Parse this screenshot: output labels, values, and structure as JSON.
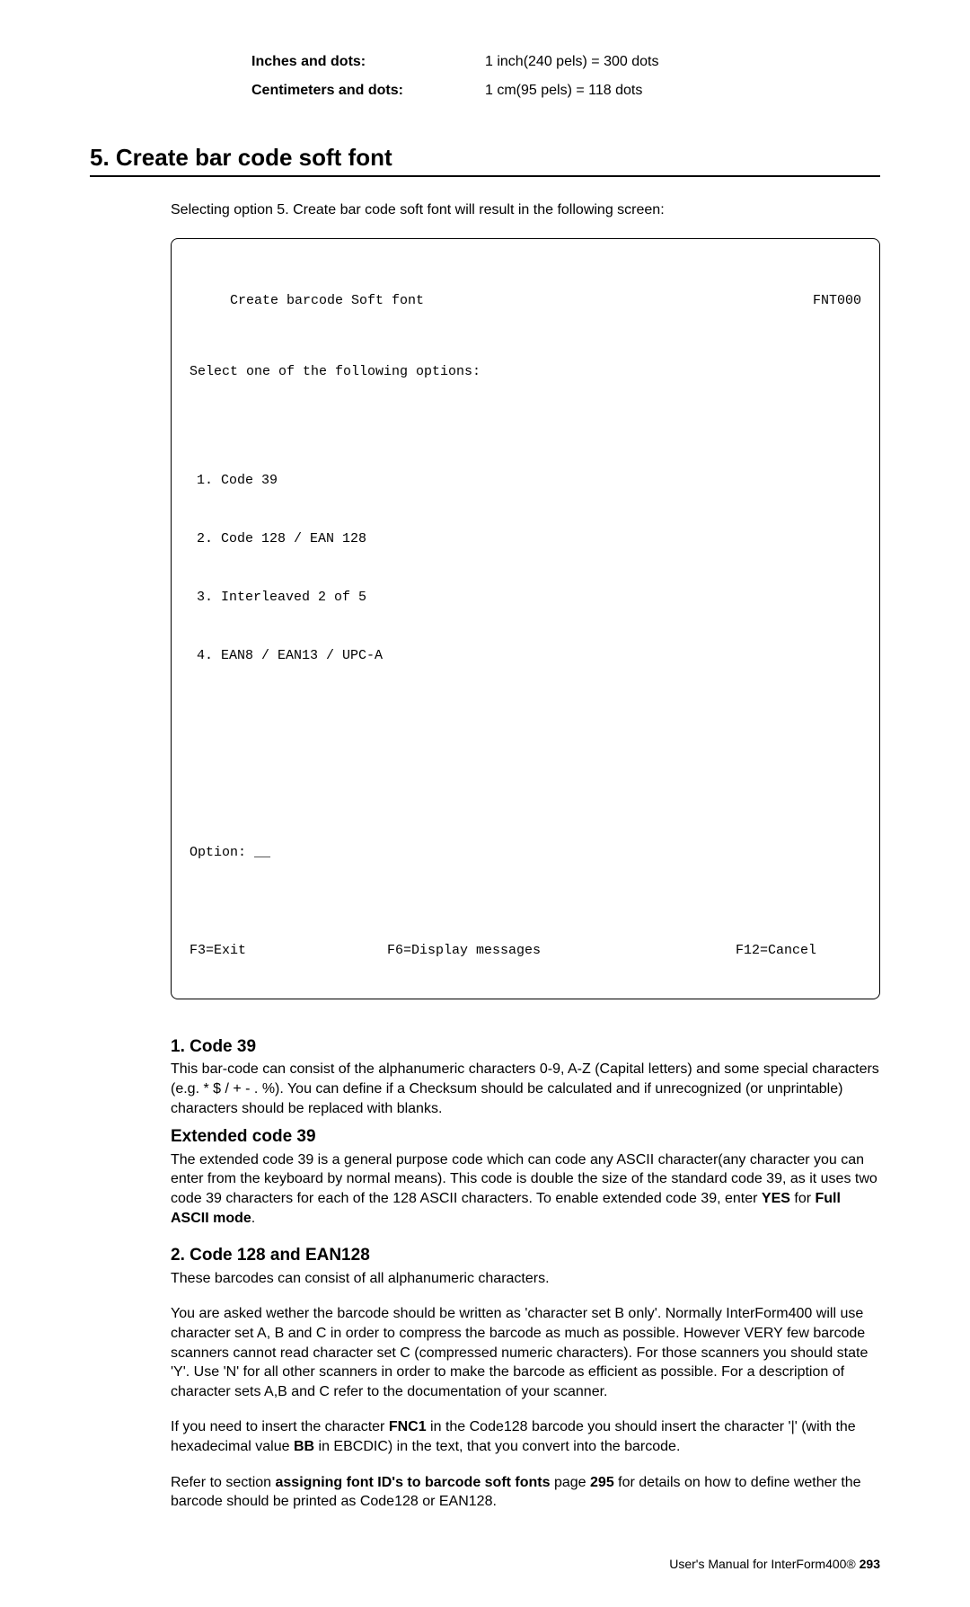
{
  "specs": {
    "row1_label": "Inches and dots:",
    "row1_value": "1 inch(240 pels) = 300 dots",
    "row2_label": "Centimeters and dots:",
    "row2_value": "1 cm(95 pels)    = 118 dots"
  },
  "section_title": "5. Create bar code soft font",
  "intro": "Selecting option 5. Create bar code soft font will result in the following screen:",
  "terminal": {
    "title": "Create barcode Soft font",
    "code": "FNT000",
    "select_line": "Select one of the following options:",
    "options": [
      "1. Code 39",
      "2. Code 128 / EAN 128",
      "3. Interleaved 2 of 5",
      "4. EAN8 / EAN13 / UPC-A"
    ],
    "option_prompt": "Option: __",
    "f3": "F3=Exit",
    "f6": "F6=Display messages",
    "f12": "F12=Cancel"
  },
  "code39": {
    "title": "1. Code 39",
    "para": "This bar-code can consist of the alphanumeric characters 0-9, A-Z (Capital letters) and some special characters (e.g. * $ / + - . %). You can define if a Checksum should be calculated and if unrecognized (or unprintable) characters should be replaced with blanks."
  },
  "ext39": {
    "title": "Extended code 39",
    "para_a": "The extended code 39 is a general purpose code which can code any ASCII character(any character you can enter from the keyboard by normal means). This code is double the size of the standard code 39, as it uses two code 39 characters for each of the 128 ASCII characters. To enable extended code 39, enter ",
    "yes": "YES",
    "para_b": " for ",
    "full": "Full ASCII mode",
    "para_c": "."
  },
  "code128": {
    "title": "2. Code 128 and EAN128",
    "p1": "These barcodes can consist of all alphanumeric characters.",
    "p2": "You are asked wether the barcode should be written as 'character set B only'. Normally InterForm400 will use character set A, B and C in order to compress the barcode as much as possible. However VERY few barcode scanners cannot read character set C (compressed numeric characters).  For those scanners you should state 'Y'. Use 'N' for all other scanners in order to make the barcode as efficient as possible. For a description of character sets A,B and C refer to the documentation of your scanner.",
    "p3a": "If you need to insert the character ",
    "fnc1": "FNC1",
    "p3b": " in the Code128 barcode you should insert the character '|' (with the hexadecimal value ",
    "bb": "BB",
    "p3c": " in EBCDIC) in the text, that you convert into the barcode.",
    "p4a": "Refer to section ",
    "assign": "assigning font ID's to barcode soft fonts",
    "p4b": " page ",
    "pg": "295",
    "p4c": " for details on how to define wether the barcode should be printed as Code128 or EAN128."
  },
  "footer": {
    "text": "User's Manual for InterForm400®   ",
    "page": "293"
  }
}
